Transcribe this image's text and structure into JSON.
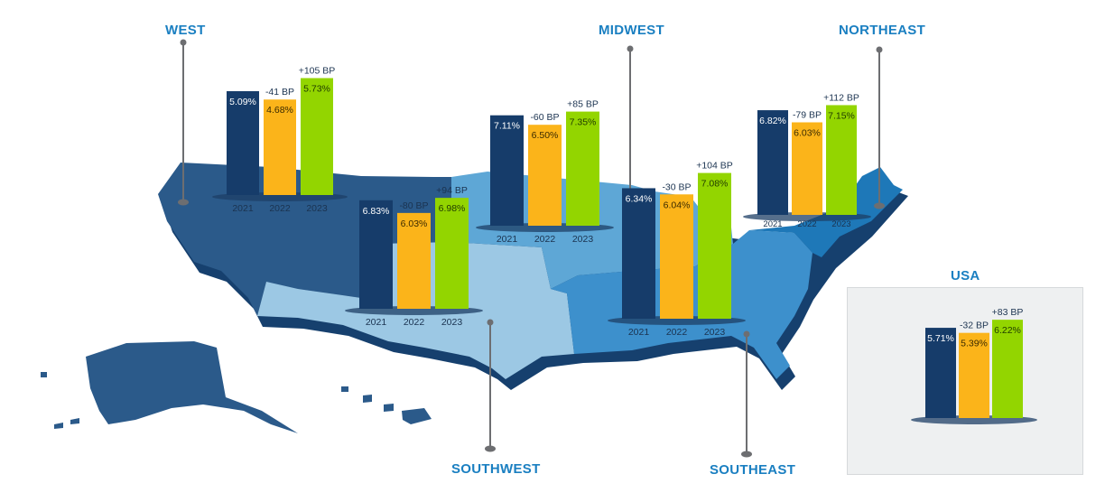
{
  "colors": {
    "y2021": "#163c6a",
    "y2022": "#fbb41a",
    "y2023": "#93d500",
    "title": "#1a7fc1",
    "pin": "#6d6e71",
    "west": "#2b5a8a",
    "southwest": "#9cc8e4",
    "midwest": "#5ea7d6",
    "southeast": "#3d90cc",
    "northeast": "#1e78b8",
    "shadow": "#16406e"
  },
  "chart_data": {
    "type": "bar",
    "categories": [
      "2021",
      "2022",
      "2023"
    ],
    "regions": [
      {
        "id": "west",
        "title": "WEST",
        "values": [
          5.09,
          4.68,
          5.73
        ],
        "labels": [
          "5.09%",
          "4.68%",
          "5.73%"
        ],
        "changes": [
          "",
          "-41 BP",
          "+105 BP"
        ]
      },
      {
        "id": "southwest",
        "title": "SOUTHWEST",
        "values": [
          6.83,
          6.03,
          6.98
        ],
        "labels": [
          "6.83%",
          "6.03%",
          "6.98%"
        ],
        "changes": [
          "",
          "-80 BP",
          "+94 BP"
        ]
      },
      {
        "id": "midwest",
        "title": "MIDWEST",
        "values": [
          7.11,
          6.5,
          7.35
        ],
        "labels": [
          "7.11%",
          "6.50%",
          "7.35%"
        ],
        "changes": [
          "",
          "-60 BP",
          "+85 BP"
        ]
      },
      {
        "id": "southeast",
        "title": "SOUTHEAST",
        "values": [
          6.34,
          6.04,
          7.08
        ],
        "labels": [
          "6.34%",
          "6.04%",
          "7.08%"
        ],
        "changes": [
          "",
          "-30 BP",
          "+104 BP"
        ]
      },
      {
        "id": "northeast",
        "title": "NORTHEAST",
        "values": [
          6.82,
          6.03,
          7.15
        ],
        "labels": [
          "6.82%",
          "6.03%",
          "7.15%"
        ],
        "changes": [
          "",
          "-79 BP",
          "+112 BP"
        ]
      },
      {
        "id": "usa",
        "title": "USA",
        "values": [
          5.71,
          5.39,
          6.22
        ],
        "labels": [
          "5.71%",
          "5.39%",
          "6.22%"
        ],
        "changes": [
          "",
          "-32 BP",
          "+83 BP"
        ]
      }
    ]
  }
}
